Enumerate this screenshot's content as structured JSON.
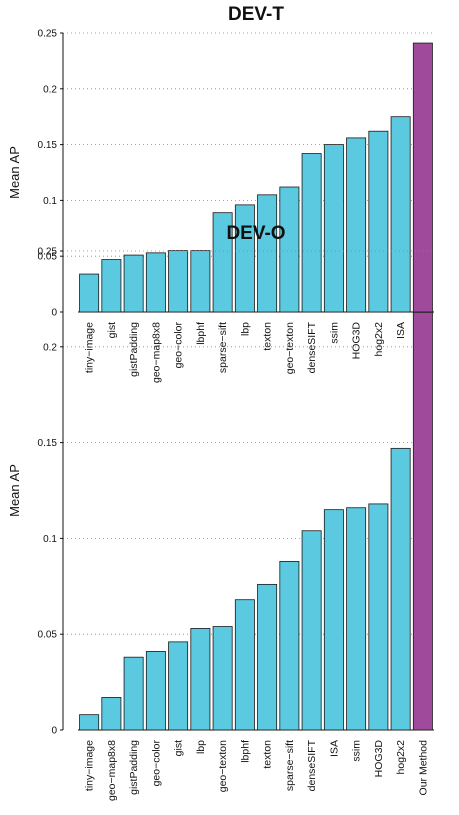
{
  "chart_data": [
    {
      "type": "bar",
      "title": "DEV-T",
      "ylabel": "Mean AP",
      "xlabel": "",
      "ylim": [
        0,
        0.25
      ],
      "yticks": [
        "0",
        "0.05",
        "0.1",
        "0.15",
        "0.2",
        "0.25"
      ],
      "grid": true,
      "categories": [
        "tiny−image",
        "gist",
        "gistPadding",
        "geo−map8x8",
        "geo−color",
        "lbphf",
        "sparse−sift",
        "lbp",
        "texton",
        "geo−texton",
        "denseSIFT",
        "ssim",
        "HOG3D",
        "hog2x2",
        "ISA",
        "Our Method"
      ],
      "values": [
        0.034,
        0.047,
        0.051,
        0.053,
        0.055,
        0.055,
        0.089,
        0.096,
        0.105,
        0.112,
        0.142,
        0.15,
        0.156,
        0.162,
        0.175,
        0.241
      ],
      "colors": [
        "#5bc9e0",
        "#5bc9e0",
        "#5bc9e0",
        "#5bc9e0",
        "#5bc9e0",
        "#5bc9e0",
        "#5bc9e0",
        "#5bc9e0",
        "#5bc9e0",
        "#5bc9e0",
        "#5bc9e0",
        "#5bc9e0",
        "#5bc9e0",
        "#5bc9e0",
        "#5bc9e0",
        "#a04a9c"
      ]
    },
    {
      "type": "bar",
      "title": "DEV-O",
      "ylabel": "Mean AP",
      "xlabel": "",
      "ylim": [
        0,
        0.25
      ],
      "yticks": [
        "0",
        "0.05",
        "0.1",
        "0.15",
        "0.2",
        "0.25"
      ],
      "grid": true,
      "categories": [
        "tiny−image",
        "geo−map8x8",
        "gistPadding",
        "geo−color",
        "gist",
        "lbp",
        "geo−texton",
        "lbphf",
        "texton",
        "sparse−sift",
        "denseSIFT",
        "ISA",
        "ssim",
        "HOG3D",
        "hog2x2",
        "Our Method"
      ],
      "values": [
        0.008,
        0.017,
        0.038,
        0.041,
        0.046,
        0.053,
        0.054,
        0.068,
        0.076,
        0.088,
        0.104,
        0.115,
        0.116,
        0.118,
        0.147,
        0.218
      ],
      "colors": [
        "#5bc9e0",
        "#5bc9e0",
        "#5bc9e0",
        "#5bc9e0",
        "#5bc9e0",
        "#5bc9e0",
        "#5bc9e0",
        "#5bc9e0",
        "#5bc9e0",
        "#5bc9e0",
        "#5bc9e0",
        "#5bc9e0",
        "#5bc9e0",
        "#5bc9e0",
        "#5bc9e0",
        "#a04a9c"
      ]
    }
  ]
}
